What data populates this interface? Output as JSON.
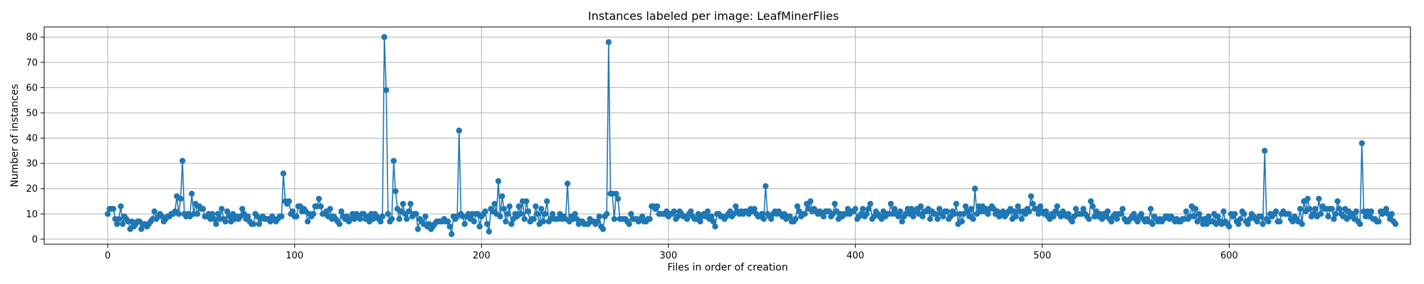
{
  "chart_data": {
    "type": "line",
    "title": "Instances labeled per image: LeafMinerFlies",
    "xlabel": "Files in order of creation",
    "ylabel": "Number of instances",
    "xlim": [
      -34,
      697
    ],
    "ylim": [
      -2,
      84
    ],
    "xticks": [
      0,
      100,
      200,
      300,
      400,
      500,
      600
    ],
    "yticks": [
      0,
      10,
      20,
      30,
      40,
      50,
      60,
      70,
      80
    ],
    "grid": true,
    "marker": "circle",
    "series_color": "#1f77b4",
    "x_start": 0,
    "values": [
      10,
      12,
      12,
      12,
      8,
      6,
      8,
      13,
      6,
      9,
      8,
      7,
      4,
      7,
      5,
      6,
      7,
      7,
      4,
      6,
      6,
      5,
      6,
      7,
      8,
      11,
      8,
      9,
      10,
      9,
      7,
      8,
      9,
      9,
      10,
      10,
      11,
      17,
      10,
      16,
      31,
      10,
      9,
      10,
      9,
      18,
      10,
      14,
      10,
      13,
      12,
      12,
      9,
      9,
      10,
      8,
      10,
      8,
      6,
      10,
      8,
      12,
      8,
      7,
      11,
      9,
      7,
      10,
      8,
      9,
      8,
      9,
      12,
      10,
      8,
      9,
      7,
      6,
      6,
      10,
      9,
      6,
      8,
      9,
      8,
      8,
      8,
      7,
      9,
      8,
      7,
      8,
      9,
      9,
      26,
      15,
      14,
      15,
      10,
      11,
      9,
      9,
      13,
      13,
      11,
      12,
      11,
      7,
      10,
      9,
      10,
      13,
      13,
      16,
      13,
      10,
      10,
      11,
      9,
      12,
      8,
      9,
      8,
      7,
      6,
      11,
      9,
      8,
      9,
      7,
      8,
      10,
      8,
      10,
      9,
      8,
      10,
      10,
      8,
      9,
      7,
      10,
      8,
      10,
      9,
      8,
      7,
      9,
      80,
      59,
      10,
      7,
      8,
      31,
      19,
      12,
      8,
      11,
      14,
      10,
      8,
      11,
      14,
      9,
      10,
      10,
      4,
      8,
      7,
      6,
      9,
      5,
      6,
      4,
      5,
      6,
      7,
      7,
      7,
      7,
      8,
      7,
      7,
      5,
      2,
      9,
      8,
      9,
      43,
      10,
      9,
      6,
      9,
      10,
      8,
      10,
      7,
      10,
      10,
      5,
      9,
      10,
      11,
      6,
      3,
      12,
      11,
      14,
      10,
      23,
      9,
      17,
      12,
      7,
      10,
      13,
      6,
      8,
      10,
      9,
      13,
      10,
      15,
      8,
      15,
      11,
      7,
      8,
      8,
      13,
      10,
      6,
      12,
      7,
      10,
      15,
      7,
      8,
      10,
      8,
      8,
      8,
      10,
      8,
      9,
      8,
      22,
      7,
      9,
      8,
      10,
      8,
      6,
      7,
      7,
      6,
      6,
      6,
      8,
      7,
      7,
      6,
      7,
      9,
      5,
      4,
      9,
      10,
      78,
      18,
      18,
      8,
      18,
      16,
      8,
      8,
      8,
      8,
      7,
      6,
      10,
      8,
      8,
      8,
      7,
      8,
      9,
      7,
      7,
      8,
      8,
      13,
      13,
      12,
      13,
      10,
      10,
      10,
      10,
      11,
      9,
      10,
      10,
      11,
      8,
      9,
      11,
      10,
      9,
      9,
      8,
      10,
      11,
      9,
      8,
      8,
      10,
      7,
      9,
      10,
      9,
      11,
      8,
      9,
      7,
      5,
      10,
      10,
      9,
      9,
      8,
      9,
      10,
      11,
      9,
      10,
      13,
      11,
      10,
      11,
      10,
      11,
      11,
      10,
      12,
      11,
      12,
      10,
      9,
      9,
      10,
      8,
      21,
      10,
      9,
      8,
      10,
      11,
      10,
      11,
      10,
      9,
      10,
      8,
      9,
      9,
      7,
      7,
      8,
      13,
      11,
      9,
      10,
      10,
      14,
      12,
      15,
      11,
      12,
      11,
      10,
      11,
      10,
      9,
      11,
      11,
      11,
      9,
      10,
      14,
      11,
      8,
      10,
      9,
      10,
      10,
      12,
      10,
      11,
      11,
      12,
      8,
      9,
      10,
      12,
      9,
      10,
      12,
      14,
      8,
      9,
      11,
      10,
      9,
      8,
      11,
      9,
      10,
      10,
      14,
      10,
      12,
      10,
      9,
      11,
      7,
      9,
      10,
      12,
      10,
      12,
      9,
      11,
      12,
      10,
      13,
      9,
      11,
      11,
      12,
      8,
      11,
      10,
      10,
      8,
      12,
      10,
      9,
      11,
      11,
      8,
      9,
      11,
      10,
      14,
      6,
      10,
      7,
      10,
      13,
      11,
      9,
      12,
      8,
      20,
      10,
      13,
      11,
      13,
      11,
      12,
      10,
      12,
      13,
      12,
      10,
      11,
      9,
      10,
      11,
      9,
      10,
      11,
      12,
      8,
      11,
      9,
      13,
      11,
      8,
      11,
      10,
      12,
      11,
      17,
      14,
      12,
      12,
      10,
      13,
      11,
      10,
      11,
      9,
      8,
      10,
      9,
      11,
      13,
      10,
      9,
      11,
      10,
      9,
      10,
      8,
      7,
      9,
      12,
      10,
      10,
      10,
      12,
      10,
      9,
      8,
      15,
      13,
      9,
      11,
      9,
      10,
      8,
      10,
      9,
      11,
      8,
      7,
      9,
      10,
      8,
      10,
      10,
      12,
      8,
      7,
      7,
      8,
      9,
      10,
      8,
      7,
      9,
      10,
      8,
      7,
      8,
      7,
      12,
      6,
      9,
      8,
      7,
      8,
      7,
      8,
      9,
      9,
      8,
      9,
      8,
      7,
      8,
      7,
      7,
      8,
      8,
      11,
      8,
      9,
      13,
      9,
      12,
      7,
      10,
      8,
      6,
      8,
      6,
      9,
      7,
      7,
      10,
      6,
      9,
      7,
      6,
      11,
      7,
      6,
      5,
      10,
      9,
      10,
      7,
      6,
      8,
      11,
      10,
      7,
      6,
      8,
      10,
      9,
      8,
      7,
      9,
      9,
      6,
      35,
      8,
      7,
      10,
      9,
      10,
      11,
      7,
      7,
      10,
      11,
      10,
      10,
      10,
      8,
      7,
      9,
      8,
      7,
      12,
      6,
      15,
      11,
      16,
      12,
      9,
      10,
      12,
      9,
      16,
      10,
      13,
      12,
      12,
      9,
      12,
      12,
      8,
      10,
      15,
      12,
      10,
      9,
      12,
      8,
      11,
      9,
      10,
      8,
      11,
      7,
      6,
      38,
      11,
      9,
      11,
      9,
      11,
      8,
      8,
      7,
      7,
      11,
      10,
      11,
      12,
      10,
      8,
      10,
      7,
      6
    ]
  }
}
